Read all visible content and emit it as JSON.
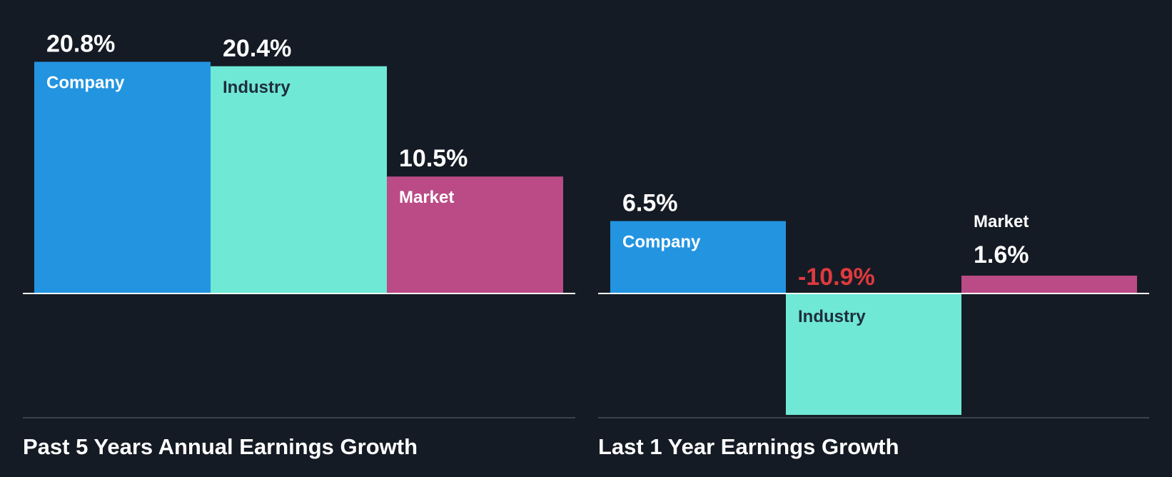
{
  "chart_data": [
    {
      "type": "bar",
      "title": "Past 5 Years Annual Earnings Growth",
      "categories": [
        "Company",
        "Industry",
        "Market"
      ],
      "values": [
        20.8,
        20.4,
        10.5
      ],
      "value_labels": [
        "20.8%",
        "20.4%",
        "10.5%"
      ],
      "ylim": [
        -11.1,
        20.8
      ],
      "grid": false,
      "legend": "none"
    },
    {
      "type": "bar",
      "title": "Last 1 Year Earnings Growth",
      "categories": [
        "Company",
        "Industry",
        "Market"
      ],
      "values": [
        6.5,
        -10.9,
        1.6
      ],
      "value_labels": [
        "6.5%",
        "-10.9%",
        "1.6%"
      ],
      "ylim": [
        -11.1,
        20.8
      ],
      "grid": false,
      "legend": "none"
    }
  ],
  "colors": {
    "background": "#151b24",
    "company": "#2394e0",
    "industry": "#6fe8d6",
    "market": "#bb4b87",
    "negative_label": "#e0393e",
    "label_light": "#ffffff",
    "label_dark": "#1f2e3a",
    "axis": "#ffffff",
    "baseline": "#3b424c"
  }
}
